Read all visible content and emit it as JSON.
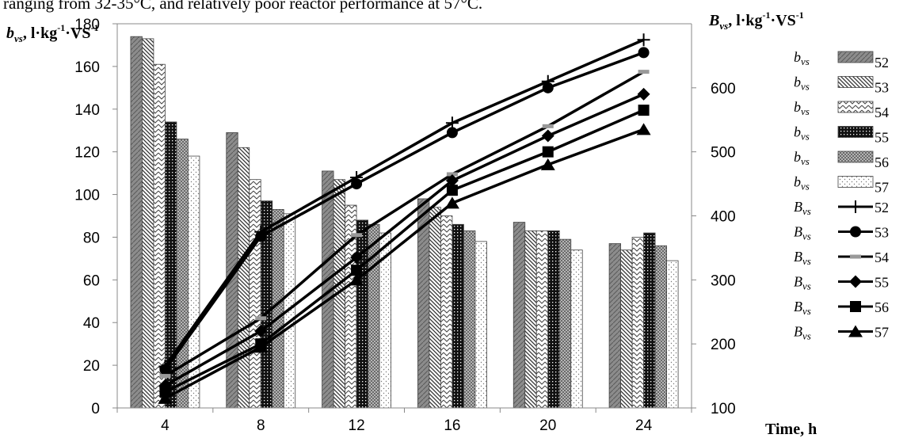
{
  "caption": "ranging from 32-35°C, and relatively poor reactor performance at 57°C.",
  "chart_data": {
    "type": "bar+line",
    "categories": [
      "4",
      "8",
      "12",
      "16",
      "20",
      "24"
    ],
    "left_axis": {
      "label_main": "b",
      "label_sub": "vs",
      "label_unit": ", l·kg",
      "label_exp": "-1",
      "label_tail": "·VS",
      "label_tail_exp": "-1",
      "ylim": [
        0,
        180
      ],
      "ticks": [
        0,
        20,
        40,
        60,
        80,
        100,
        120,
        140,
        160,
        180
      ]
    },
    "right_axis": {
      "label_main": "B",
      "label_sub": "vs",
      "label_unit": ", l·kg",
      "label_exp": "-1",
      "label_tail": "·VS",
      "label_tail_exp": "-1",
      "ylim": [
        100,
        700
      ],
      "ticks": [
        100,
        200,
        300,
        400,
        500,
        600
      ]
    },
    "xlabel": "Time, h",
    "bar_series": [
      {
        "prefix": "b",
        "sub": "vs",
        "name": "52",
        "values": [
          174,
          129,
          111,
          98,
          87,
          77
        ]
      },
      {
        "prefix": "b",
        "sub": "vs",
        "name": "53",
        "values": [
          173,
          122,
          107,
          94,
          83,
          74
        ]
      },
      {
        "prefix": "b",
        "sub": "vs",
        "name": "54",
        "values": [
          161,
          107,
          95,
          90,
          83,
          80
        ]
      },
      {
        "prefix": "b",
        "sub": "vs",
        "name": "55",
        "values": [
          134,
          97,
          88,
          86,
          83,
          82
        ]
      },
      {
        "prefix": "b",
        "sub": "vs",
        "name": "56",
        "values": [
          126,
          93,
          86,
          83,
          79,
          76
        ]
      },
      {
        "prefix": "b",
        "sub": "vs",
        "name": "57",
        "values": [
          118,
          91,
          82,
          78,
          74,
          69
        ]
      }
    ],
    "line_series": [
      {
        "prefix": "B",
        "sub": "vs",
        "name": "52",
        "marker": "plus",
        "values": [
          165,
          375,
          460,
          545,
          610,
          675
        ]
      },
      {
        "prefix": "B",
        "sub": "vs",
        "name": "53",
        "marker": "circle",
        "values": [
          160,
          368,
          450,
          530,
          600,
          655
        ]
      },
      {
        "prefix": "B",
        "sub": "vs",
        "name": "54",
        "marker": "dash",
        "values": [
          150,
          240,
          370,
          465,
          540,
          625
        ]
      },
      {
        "prefix": "B",
        "sub": "vs",
        "name": "55",
        "marker": "diamond",
        "values": [
          135,
          220,
          335,
          455,
          525,
          590
        ]
      },
      {
        "prefix": "B",
        "sub": "vs",
        "name": "56",
        "marker": "square",
        "values": [
          125,
          200,
          315,
          440,
          500,
          565
        ]
      },
      {
        "prefix": "B",
        "sub": "vs",
        "name": "57",
        "marker": "triangle",
        "values": [
          115,
          195,
          300,
          420,
          480,
          535
        ]
      }
    ],
    "legend_position": "right",
    "grid": false
  }
}
